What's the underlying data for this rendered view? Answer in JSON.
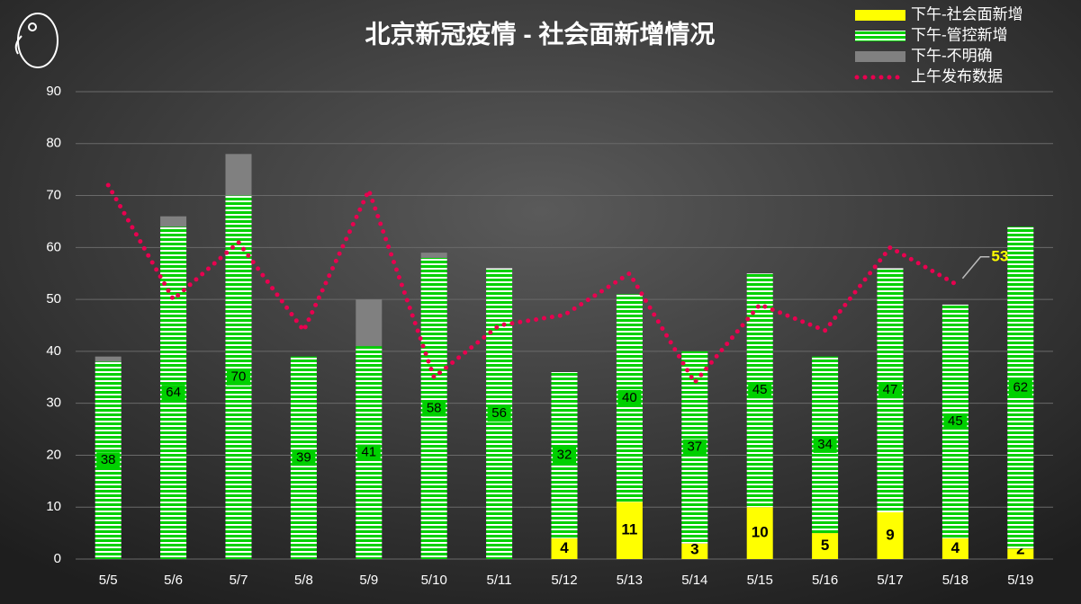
{
  "chart_data": {
    "type": "bar",
    "title": "北京新冠疫情 - 社会面新增情况",
    "categories": [
      "5/5",
      "5/6",
      "5/7",
      "5/8",
      "5/9",
      "5/10",
      "5/11",
      "5/12",
      "5/13",
      "5/14",
      "5/15",
      "5/16",
      "5/17",
      "5/18",
      "5/19"
    ],
    "series": [
      {
        "name": "下午-社会面新增",
        "color": "#ffff00",
        "values": [
          0,
          0,
          0,
          0,
          0,
          0,
          0,
          4,
          11,
          3,
          10,
          5,
          9,
          4,
          2
        ]
      },
      {
        "name": "下午-管控新增",
        "color": "#00d000",
        "values": [
          38,
          64,
          70,
          39,
          41,
          58,
          56,
          32,
          40,
          37,
          45,
          34,
          47,
          45,
          62
        ]
      },
      {
        "name": "下午-不明确",
        "color": "#808080",
        "values": [
          1,
          2,
          8,
          0,
          9,
          1,
          0,
          0,
          0,
          0,
          0,
          0,
          0,
          0,
          0
        ]
      },
      {
        "name": "上午发布数据",
        "color": "#e8004f",
        "type": "line",
        "values": [
          72,
          50,
          61,
          44,
          71,
          35,
          45,
          47,
          55,
          34,
          49,
          44,
          60,
          53,
          null
        ]
      }
    ],
    "ylim": [
      0,
      90
    ],
    "yticks": [
      0,
      10,
      20,
      30,
      40,
      50,
      60,
      70,
      80,
      90
    ],
    "grid": true
  }
}
